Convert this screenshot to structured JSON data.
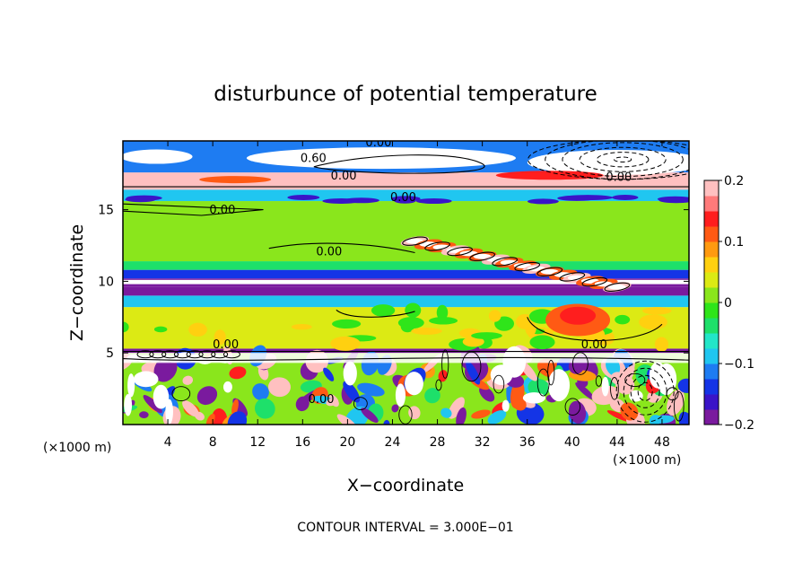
{
  "chart_data": {
    "type": "heatmap",
    "title": "disturbunce of potential temperature",
    "xlabel": "X−coordinate",
    "ylabel": "Z−coordinate",
    "x_unit_left": "(×1000 m)",
    "x_unit_right": "(×1000 m)",
    "xlim": [
      0,
      50.4
    ],
    "ylim": [
      0,
      19.8
    ],
    "x_ticks": [
      4,
      8,
      12,
      16,
      20,
      24,
      28,
      32,
      36,
      40,
      44,
      48
    ],
    "y_ticks": [
      5,
      10,
      15
    ],
    "colorbar": {
      "range": [
        -0.2,
        0.2
      ],
      "ticks": [
        {
          "value": 0.2,
          "label": "0.2"
        },
        {
          "value": 0.1,
          "label": "0.1"
        },
        {
          "value": 0,
          "label": "0"
        },
        {
          "value": -0.1,
          "label": "−0.1"
        },
        {
          "value": -0.2,
          "label": "−0.2"
        }
      ],
      "colors": [
        "#7a1a9e",
        "#3a14c8",
        "#1434e6",
        "#1e7cf2",
        "#20c6f0",
        "#22e6c8",
        "#1ee06a",
        "#2fe51a",
        "#8ae61c",
        "#dcea14",
        "#ffd010",
        "#ff9a10",
        "#ff5a14",
        "#ff1e1e",
        "#ff7a7a",
        "#ffc0c0"
      ]
    },
    "layers": [
      {
        "z0": 0,
        "z1": 5.0,
        "value": 0.0,
        "pattern": "turbulent"
      },
      {
        "z0": 5.0,
        "z1": 5.3,
        "value": -0.2
      },
      {
        "z0": 5.3,
        "z1": 8.2,
        "value": 0.03
      },
      {
        "z0": 8.2,
        "z1": 9.0,
        "value": -0.1
      },
      {
        "z0": 9.0,
        "z1": 9.6,
        "value": -0.2
      },
      {
        "z0": 9.6,
        "z1": 10.2,
        "value": -0.25
      },
      {
        "z0": 10.2,
        "z1": 10.8,
        "value": -0.15
      },
      {
        "z0": 10.8,
        "z1": 11.4,
        "value": -0.05
      },
      {
        "z0": 11.4,
        "z1": 15.6,
        "value": 0.02
      },
      {
        "z0": 15.6,
        "z1": 16.4,
        "value": -0.08
      },
      {
        "z0": 16.4,
        "z1": 17.6,
        "value": 0.2
      },
      {
        "z0": 17.6,
        "z1": 19.8,
        "value": -0.12
      }
    ],
    "contour_labels": [
      {
        "x": 21.6,
        "z": 19.6,
        "text": "0.00"
      },
      {
        "x": 15.8,
        "z": 18.5,
        "text": "0.60"
      },
      {
        "x": 18.5,
        "z": 17.3,
        "text": "0.00"
      },
      {
        "x": 43.0,
        "z": 17.2,
        "text": "0.00"
      },
      {
        "x": 23.8,
        "z": 15.8,
        "text": "0.00"
      },
      {
        "x": 7.7,
        "z": 14.9,
        "text": "0.00"
      },
      {
        "x": 17.2,
        "z": 12.0,
        "text": "0.00"
      },
      {
        "x": 40.8,
        "z": 5.5,
        "text": "0.00"
      },
      {
        "x": 8.0,
        "z": 5.5,
        "text": "0.00"
      },
      {
        "x": 16.5,
        "z": 1.7,
        "text": "0.00"
      }
    ],
    "contour_interval_text": "CONTOUR INTERVAL = 3.000E−01"
  }
}
